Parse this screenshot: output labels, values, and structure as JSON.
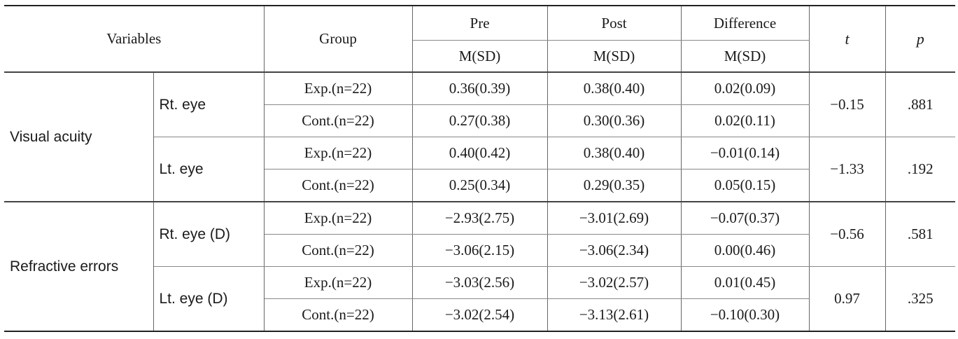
{
  "header": {
    "variables": "Variables",
    "group": "Group",
    "pre": "Pre",
    "post": "Post",
    "difference": "Difference",
    "t": "t",
    "p": "p",
    "msd_pre": "M(SD)",
    "msd_post": "M(SD)",
    "msd_diff": "M(SD)"
  },
  "sections": [
    {
      "label": "Visual acuity",
      "subs": [
        {
          "label": "Rt. eye",
          "t": "−0.15",
          "p": ".881",
          "rows": [
            {
              "group": "Exp.(n=22)",
              "pre": "0.36(0.39)",
              "post": "0.38(0.40)",
              "diff": "0.02(0.09)"
            },
            {
              "group": "Cont.(n=22)",
              "pre": "0.27(0.38)",
              "post": "0.30(0.36)",
              "diff": "0.02(0.11)"
            }
          ]
        },
        {
          "label": "Lt. eye",
          "t": "−1.33",
          "p": ".192",
          "rows": [
            {
              "group": "Exp.(n=22)",
              "pre": "0.40(0.42)",
              "post": "0.38(0.40)",
              "diff": "−0.01(0.14)"
            },
            {
              "group": "Cont.(n=22)",
              "pre": "0.25(0.34)",
              "post": "0.29(0.35)",
              "diff": "0.05(0.15)"
            }
          ]
        }
      ]
    },
    {
      "label": "Refractive errors",
      "subs": [
        {
          "label": "Rt. eye (D)",
          "t": "−0.56",
          "p": ".581",
          "rows": [
            {
              "group": "Exp.(n=22)",
              "pre": "−2.93(2.75)",
              "post": "−3.01(2.69)",
              "diff": "−0.07(0.37)"
            },
            {
              "group": "Cont.(n=22)",
              "pre": "−3.06(2.15)",
              "post": "−3.06(2.34)",
              "diff": "0.00(0.46)"
            }
          ]
        },
        {
          "label": "Lt. eye (D)",
          "t": "0.97",
          "p": ".325",
          "rows": [
            {
              "group": "Exp.(n=22)",
              "pre": "−3.03(2.56)",
              "post": "−3.02(2.57)",
              "diff": "0.01(0.45)"
            },
            {
              "group": "Cont.(n=22)",
              "pre": "−3.02(2.54)",
              "post": "−3.13(2.61)",
              "diff": "−0.10(0.30)"
            }
          ]
        }
      ]
    }
  ]
}
